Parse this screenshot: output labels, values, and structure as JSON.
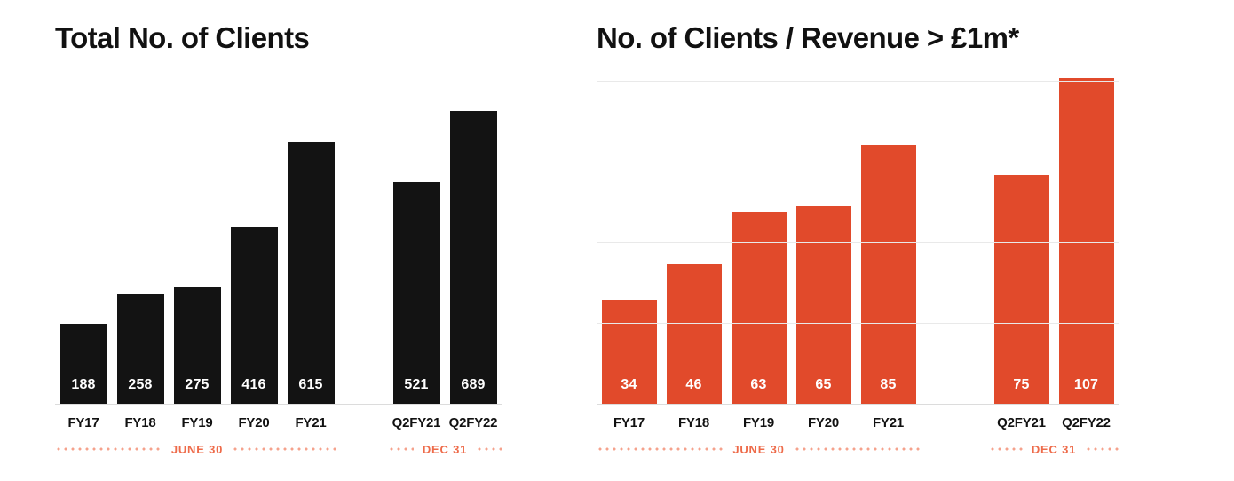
{
  "chart_data": [
    {
      "type": "bar",
      "title": "Total No. of Clients",
      "categories": [
        "FY17",
        "FY18",
        "FY19",
        "FY20",
        "FY21",
        "Q2FY21",
        "Q2FY22"
      ],
      "values": [
        188,
        258,
        275,
        416,
        615,
        521,
        689
      ],
      "groups": [
        {
          "period_label": "JUNE 30",
          "categories": [
            "FY17",
            "FY18",
            "FY19",
            "FY20",
            "FY21"
          ],
          "values": [
            188,
            258,
            275,
            416,
            615
          ]
        },
        {
          "period_label": "DEC 31",
          "categories": [
            "Q2FY21",
            "Q2FY22"
          ],
          "values": [
            521,
            689
          ]
        }
      ],
      "bar_color": "#131313",
      "value_label_color": "#ffffff",
      "ylim": [
        0,
        760
      ],
      "grid": false,
      "legend": "none",
      "xlabel": "",
      "ylabel": ""
    },
    {
      "type": "bar",
      "title": "No. of Clients / Revenue > £1m*",
      "categories": [
        "FY17",
        "FY18",
        "FY19",
        "FY20",
        "FY21",
        "Q2FY21",
        "Q2FY22"
      ],
      "values": [
        34,
        46,
        63,
        65,
        85,
        75,
        107
      ],
      "groups": [
        {
          "period_label": "JUNE 30",
          "categories": [
            "FY17",
            "FY18",
            "FY19",
            "FY20",
            "FY21"
          ],
          "values": [
            34,
            46,
            63,
            65,
            85
          ]
        },
        {
          "period_label": "DEC 31",
          "categories": [
            "Q2FY21",
            "Q2FY22"
          ],
          "values": [
            75,
            107
          ]
        }
      ],
      "bar_color": "#E14A2B",
      "value_label_color": "#ffffff",
      "ylim": [
        0,
        106
      ],
      "grid": true,
      "legend": "none",
      "xlabel": "",
      "ylabel": ""
    }
  ],
  "styles": {
    "accent": "#E14A2B",
    "period_label_color": "#EE6B4A",
    "period_dot_color": "#F5A28C",
    "grid_color": "#E9E9E9",
    "baseline_color": "#DCDCDC",
    "title_color": "#111111"
  }
}
